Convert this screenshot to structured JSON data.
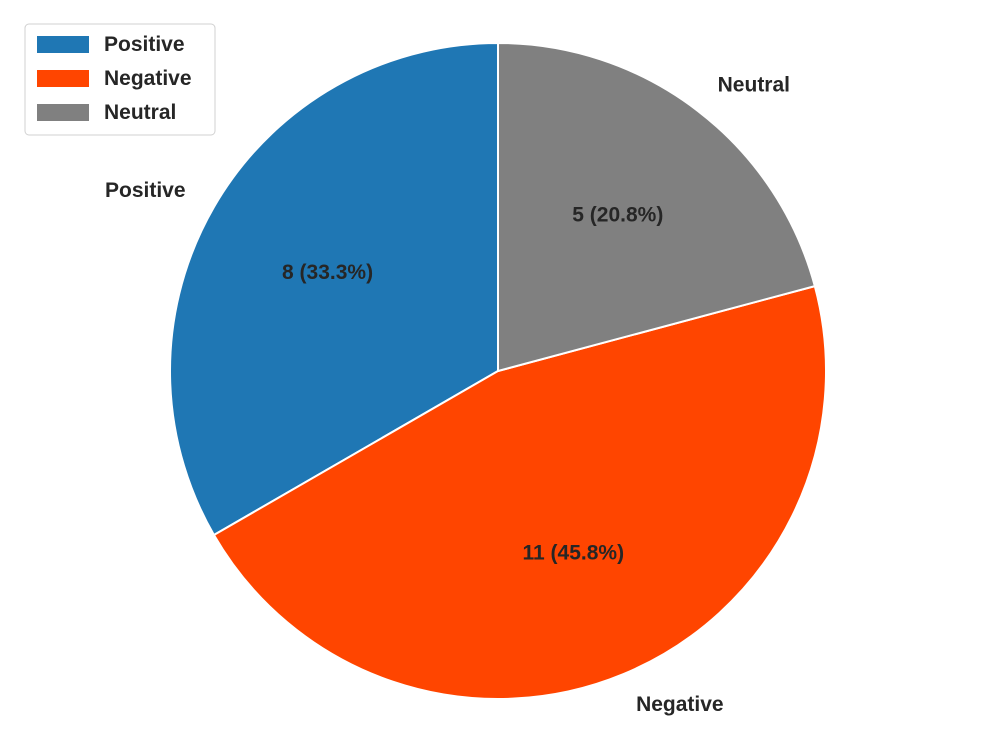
{
  "chart_data": {
    "type": "pie",
    "title": "",
    "categories": [
      "Positive",
      "Negative",
      "Neutral"
    ],
    "values": [
      8,
      11,
      5
    ],
    "percent_labels": [
      "8 (33.3%)",
      "11 (45.8%)",
      "5 (20.8%)"
    ],
    "colors": [
      "#1f77b4",
      "#ff4500",
      "#808080"
    ],
    "start_angle_deg": 90,
    "direction": "counterclockwise",
    "legend": {
      "placement": "top-left",
      "entries": [
        "Positive",
        "Negative",
        "Neutral"
      ]
    }
  }
}
